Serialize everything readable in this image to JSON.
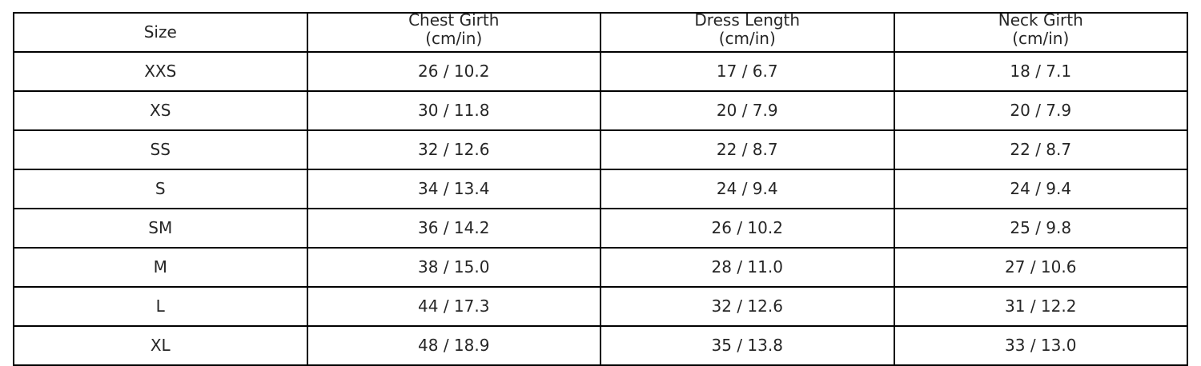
{
  "chart_data": {
    "type": "table",
    "columns": [
      "Size",
      "Chest Girth\n(cm/in)",
      "Dress Length\n(cm/in)",
      "Neck Girth\n(cm/in)"
    ],
    "header": [
      {
        "line1": "Size",
        "line2": ""
      },
      {
        "line1": "Chest Girth",
        "line2": "(cm/in)"
      },
      {
        "line1": "Dress Length",
        "line2": "(cm/in)"
      },
      {
        "line1": "Neck Girth",
        "line2": "(cm/in)"
      }
    ],
    "rows": [
      [
        "XXS",
        "26 / 10.2",
        "17 / 6.7",
        "18 / 7.1"
      ],
      [
        "XS",
        "30 / 11.8",
        "20 / 7.9",
        "20 / 7.9"
      ],
      [
        "SS",
        "32 / 12.6",
        "22 / 8.7",
        "22 / 8.7"
      ],
      [
        "S",
        "34 / 13.4",
        "24 / 9.4",
        "24 / 9.4"
      ],
      [
        "SM",
        "36 / 14.2",
        "26 / 10.2",
        "25 / 9.8"
      ],
      [
        "M",
        "38 / 15.0",
        "28 / 11.0",
        "27 / 10.6"
      ],
      [
        "L",
        "44 / 17.3",
        "32 / 12.6",
        "31 / 12.2"
      ],
      [
        "XL",
        "48 / 18.9",
        "35 / 13.8",
        "33 / 13.0"
      ]
    ],
    "colors": {
      "text": "#262626",
      "border": "#000000",
      "background": "#ffffff"
    }
  }
}
